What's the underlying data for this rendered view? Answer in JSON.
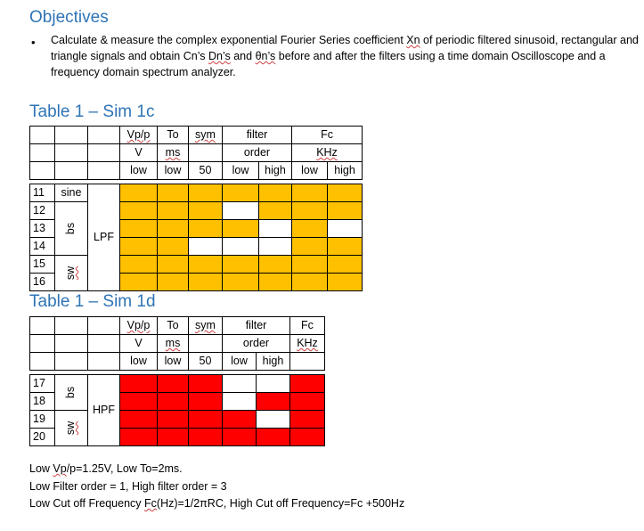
{
  "objectives": {
    "title": "Objectives",
    "bullet": "•",
    "text_1": "Calculate & measure the complex exponential Fourier Series coefficient ",
    "xn": "Xn",
    "text_2": " of periodic filtered sinusoid, rectangular and triangle signals and obtain Cn’s ",
    "dn": "Dn’s",
    "text_3": " and ",
    "thn": "θn’s",
    "text_4": " before and after the filters using a time domain Oscilloscope and a frequency domain spectrum analyzer."
  },
  "table1": {
    "title": "Table 1 – Sim 1c",
    "headers": {
      "vpp": "Vp/p",
      "to": "To",
      "sym": "sym",
      "filter": "filter",
      "fc": "Fc",
      "v": "V",
      "ms": "ms",
      "order": "order",
      "khz": "KHz",
      "low": "low",
      "high": "high",
      "fifty": "50"
    },
    "rows": [
      {
        "num": "11",
        "label": "sine",
        "cells": [
          "y",
          "y",
          "y",
          "y",
          "y",
          "y",
          "y"
        ]
      },
      {
        "num": "12",
        "cells": [
          "y",
          "y",
          "y",
          "w",
          "y",
          "y",
          "y"
        ]
      },
      {
        "num": "13",
        "cells": [
          "y",
          "y",
          "y",
          "y",
          "w",
          "y",
          "w"
        ]
      },
      {
        "num": "14",
        "cells": [
          "y",
          "y",
          "w",
          "w",
          "w",
          "y",
          "y"
        ]
      },
      {
        "num": "15",
        "cells": [
          "y",
          "y",
          "y",
          "y",
          "y",
          "y",
          "y"
        ]
      },
      {
        "num": "16",
        "cells": [
          "y",
          "y",
          "y",
          "y",
          "y",
          "y",
          "y"
        ]
      }
    ],
    "group_bs": "bs",
    "group_sw": "sw",
    "filter_label": "LPF"
  },
  "table2": {
    "title": "Table 1 – Sim 1d",
    "headers": {
      "vpp": "Vp/p",
      "to": "To",
      "sym": "sym",
      "filter": "filter",
      "fc": "Fc",
      "v": "V",
      "ms": "ms",
      "order": "order",
      "khz": "KHz",
      "low": "low",
      "high": "high",
      "fifty": "50"
    },
    "rows": [
      {
        "num": "17",
        "cells": [
          "r",
          "r",
          "r",
          "w",
          "w",
          "r"
        ]
      },
      {
        "num": "18",
        "cells": [
          "r",
          "r",
          "r",
          "w",
          "r",
          "r"
        ]
      },
      {
        "num": "19",
        "cells": [
          "r",
          "r",
          "r",
          "r",
          "w",
          "r"
        ]
      },
      {
        "num": "20",
        "cells": [
          "r",
          "r",
          "r",
          "r",
          "r",
          "r"
        ]
      }
    ],
    "group_bs": "bs",
    "group_sw": "sw",
    "filter_label": "HPF"
  },
  "notes": {
    "line1_a": "Low ",
    "line1_vpp": "Vp",
    "line1_b": "/p=1.25V, Low To=2ms.",
    "line2": "Low Filter order = 1, High filter order = 3",
    "line3_a": "Low Cut off Frequency ",
    "line3_fc": "Fc",
    "line3_b": "(Hz)=1/2πRC, High Cut off Frequency=Fc +500Hz"
  },
  "colors": {
    "accent": "#2e74b5",
    "yellow": "#ffc000",
    "red": "#ff0000"
  }
}
